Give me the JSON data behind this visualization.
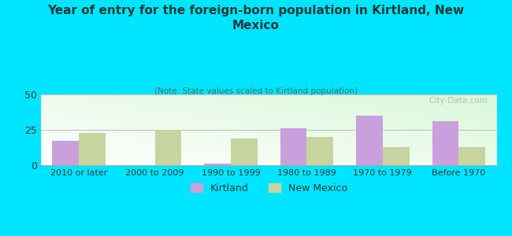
{
  "title": "Year of entry for the foreign-born population in Kirtland, New\nMexico",
  "subtitle": "(Note: State values scaled to Kirtland population)",
  "categories": [
    "2010 or later",
    "2000 to 2009",
    "1990 to 1999",
    "1980 to 1989",
    "1970 to 1979",
    "Before 1970"
  ],
  "kirtland_values": [
    17,
    0,
    1,
    26,
    35,
    31
  ],
  "new_mexico_values": [
    23,
    25,
    19,
    20,
    13,
    13
  ],
  "kirtland_color": "#c9a0dc",
  "new_mexico_color": "#c8d4a0",
  "background_color": "#00e5ff",
  "ylim": [
    0,
    50
  ],
  "yticks": [
    0,
    25,
    50
  ],
  "bar_width": 0.35,
  "legend_kirtland": "Kirtland",
  "legend_new_mexico": "New Mexico",
  "watermark": "City-Data.com",
  "title_color": "#1a3a3a",
  "subtitle_color": "#4a6a6a"
}
